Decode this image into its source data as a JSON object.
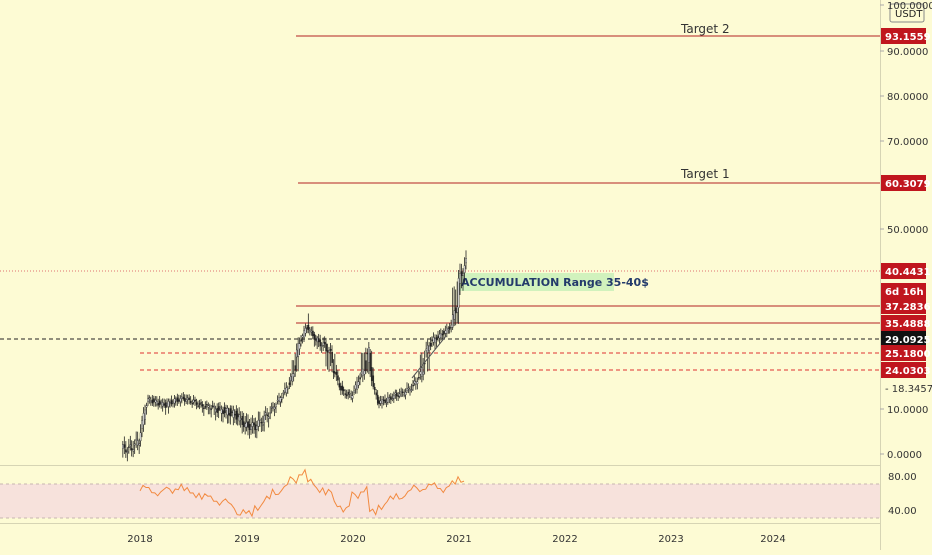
{
  "chart_data": {
    "type": "candlestick",
    "price_axis": {
      "currency_label": "USDT",
      "ticks": [
        "0.0000",
        "10.0000",
        "50.0000",
        "70.0000",
        "80.0000",
        "90.0000",
        "100.0000"
      ],
      "tick_values": [
        0,
        10,
        50,
        70,
        80,
        90,
        100
      ],
      "log_scale": false
    },
    "time_axis": {
      "labels": [
        "2018",
        "2019",
        "2020",
        "2021",
        "2022",
        "2023",
        "2024"
      ]
    },
    "annotations": [
      {
        "label": "Target 2",
        "price": 93.1559,
        "tag": "93.1559"
      },
      {
        "label": "Target 1",
        "price": 60.3079,
        "tag": "60.3079"
      },
      {
        "label": "ACCUMULATION Range 35-40$",
        "low": 35.0,
        "high": 40.0
      }
    ],
    "price_tags": [
      {
        "text": "40.4431",
        "price": 40.4431,
        "style": "red"
      },
      {
        "text": "6d 16h",
        "price": 37.9,
        "style": "red"
      },
      {
        "text": "37.2836",
        "price": 37.2836,
        "style": "red"
      },
      {
        "text": "35.4888",
        "price": 35.4888,
        "style": "red"
      },
      {
        "text": "29.0925",
        "price": 29.0925,
        "style": "black"
      },
      {
        "text": "25.1800",
        "price": 25.18,
        "style": "red"
      },
      {
        "text": "24.0303",
        "price": 24.0303,
        "style": "red"
      },
      {
        "text": "18.3457",
        "price": 18.3457,
        "style": "plain"
      }
    ],
    "horizontal_levels": [
      {
        "price": 37.2836,
        "style": "solid"
      },
      {
        "price": 35.4888,
        "style": "solid"
      },
      {
        "price": 29.0925,
        "style": "dashed-black"
      },
      {
        "price": 25.18,
        "style": "dashed-red"
      },
      {
        "price": 24.0303,
        "style": "dashed-red"
      },
      {
        "price": 40.4431,
        "style": "dotted-red"
      }
    ],
    "series": [
      {
        "x": [
          "2017-11",
          "2017-12",
          "2018-01",
          "2018-02",
          "2018-03",
          "2018-04",
          "2018-05",
          "2018-06",
          "2018-07",
          "2018-08",
          "2018-09",
          "2018-10",
          "2018-11",
          "2018-12",
          "2019-01",
          "2019-02",
          "2019-03",
          "2019-04",
          "2019-05",
          "2019-06",
          "2019-07",
          "2019-08",
          "2019-09",
          "2019-10",
          "2019-11",
          "2019-12",
          "2020-01",
          "2020-02",
          "2020-03",
          "2020-04",
          "2020-05",
          "2020-06",
          "2020-07",
          "2020-08",
          "2020-09",
          "2020-10",
          "2020-11",
          "2020-12",
          "2021-01"
        ],
        "values": [
          1.2,
          3.0,
          14.0,
          12.5,
          11.5,
          13.5,
          14.0,
          13.0,
          11.5,
          10.5,
          10.0,
          9.5,
          8.5,
          6.5,
          6.0,
          7.5,
          10.0,
          14.5,
          20.0,
          27.0,
          34.0,
          29.0,
          27.0,
          24.0,
          17.0,
          15.0,
          22.0,
          26.0,
          12.5,
          13.5,
          15.5,
          16.5,
          19.0,
          23.5,
          28.0,
          30.5,
          33.0,
          38.0,
          42.5
        ]
      }
    ],
    "rsi": {
      "ticks": [
        "80.00",
        "40.00"
      ],
      "tick_values": [
        80,
        40
      ],
      "band": [
        30,
        70
      ],
      "values": [
        null,
        null,
        65,
        62,
        60,
        63,
        66,
        62,
        58,
        55,
        52,
        49,
        45,
        36,
        35,
        43,
        52,
        60,
        66,
        75,
        83,
        72,
        64,
        60,
        46,
        41,
        57,
        63,
        37,
        44,
        52,
        55,
        60,
        65,
        66,
        68,
        64,
        70,
        75
      ]
    }
  }
}
